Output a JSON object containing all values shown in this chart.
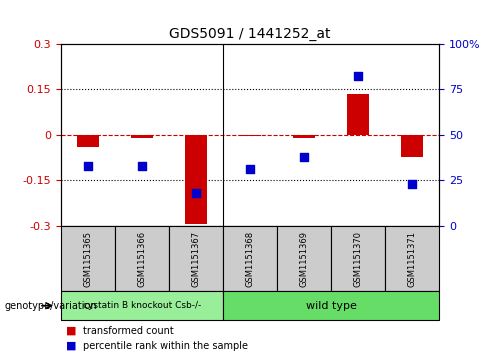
{
  "title": "GDS5091 / 1441252_at",
  "samples": [
    "GSM1151365",
    "GSM1151366",
    "GSM1151367",
    "GSM1151368",
    "GSM1151369",
    "GSM1151370",
    "GSM1151371"
  ],
  "transformed_counts": [
    -0.04,
    -0.01,
    -0.295,
    -0.005,
    -0.01,
    0.135,
    -0.075
  ],
  "percentile_ranks": [
    33,
    33,
    18,
    31,
    38,
    82,
    23
  ],
  "ylim_left": [
    -0.3,
    0.3
  ],
  "ylim_right": [
    0,
    100
  ],
  "yticks_left": [
    -0.3,
    -0.15,
    0,
    0.15,
    0.3
  ],
  "yticks_right": [
    0,
    25,
    50,
    75,
    100
  ],
  "ytick_labels_left": [
    "-0.3",
    "-0.15",
    "0",
    "0.15",
    "0.3"
  ],
  "ytick_labels_right": [
    "0",
    "25",
    "50",
    "75",
    "100%"
  ],
  "bar_color": "#cc0000",
  "dot_color": "#0000cc",
  "zero_line_color": "#cc0000",
  "dotted_line_color": "#000000",
  "groups": [
    {
      "label": "cystatin B knockout Csb-/-",
      "count": 3,
      "color": "#99ee99"
    },
    {
      "label": "wild type",
      "count": 4,
      "color": "#66dd66"
    }
  ],
  "genotype_label": "genotype/variation",
  "legend_items": [
    {
      "color": "#cc0000",
      "label": "transformed count"
    },
    {
      "color": "#0000cc",
      "label": "percentile rank within the sample"
    }
  ],
  "bar_width": 0.4,
  "dot_size": 40
}
